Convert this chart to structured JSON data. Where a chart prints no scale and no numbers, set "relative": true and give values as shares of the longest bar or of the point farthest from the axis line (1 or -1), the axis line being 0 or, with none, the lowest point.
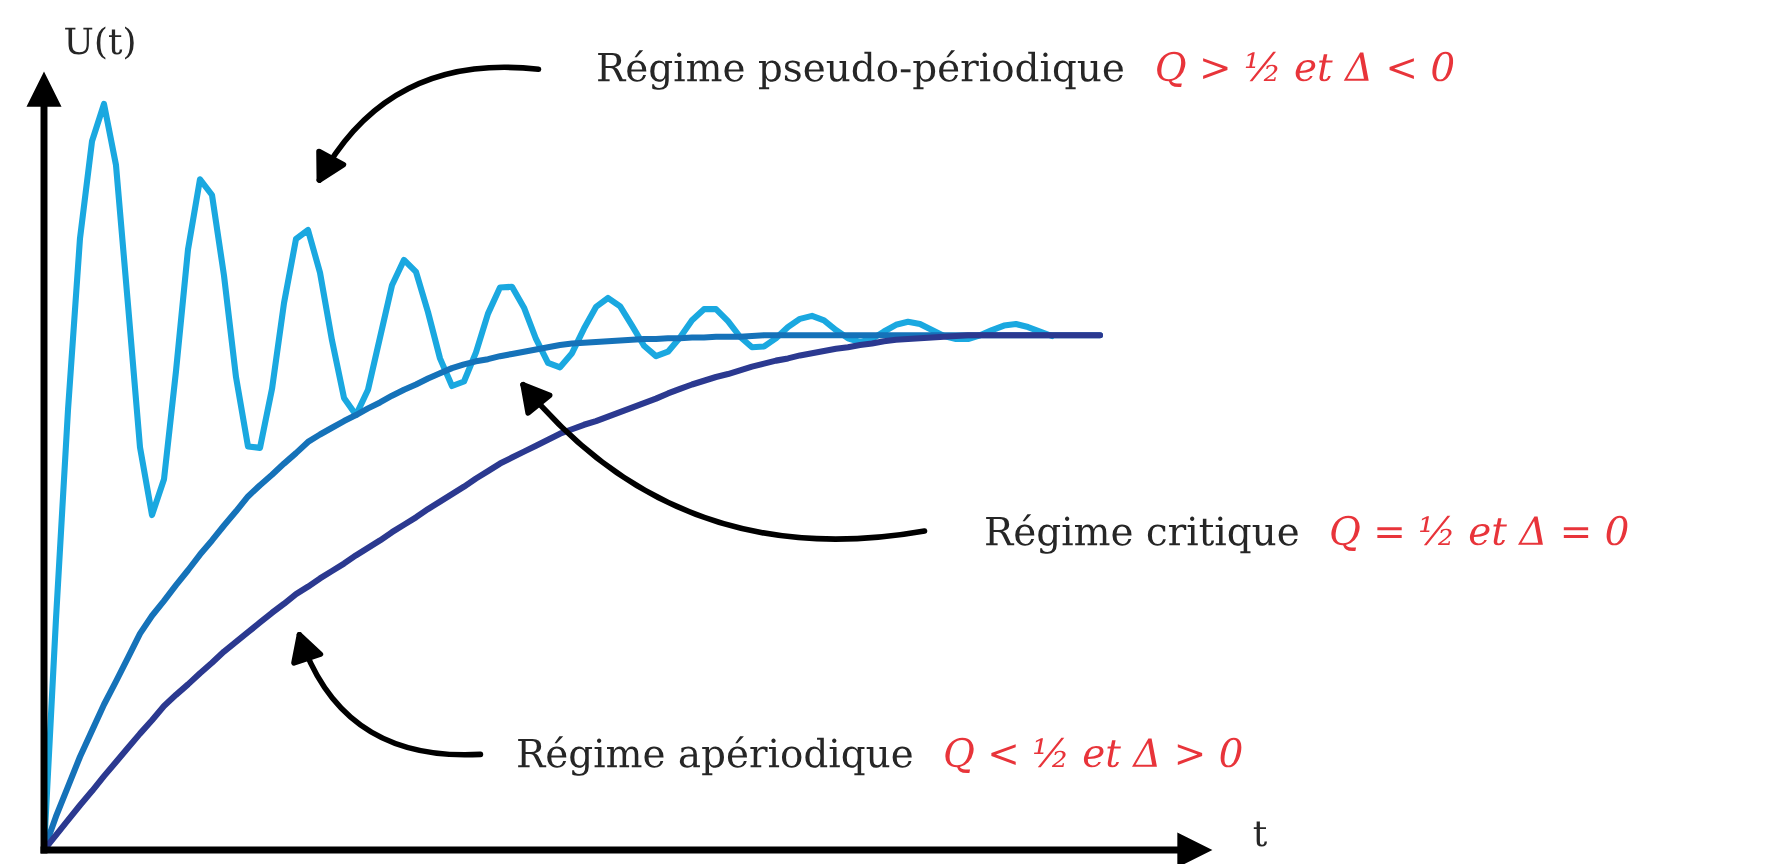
{
  "chart_data": {
    "type": "line",
    "relative": true,
    "xlabel": "t",
    "ylabel": "U(t)",
    "categories": [
      null,
      null,
      null,
      null,
      null,
      null,
      null,
      null,
      null,
      null,
      null,
      null,
      null,
      null,
      null,
      null,
      null,
      null,
      null,
      null,
      null,
      null,
      null,
      null,
      null,
      null,
      null,
      null,
      null,
      null,
      null,
      null,
      null,
      null,
      null,
      null,
      null,
      null,
      null,
      null,
      null,
      null,
      null,
      null,
      null,
      null,
      null,
      null,
      null,
      null,
      null,
      null,
      null,
      null,
      null,
      null,
      null,
      null,
      null,
      null,
      null,
      null,
      null,
      null,
      null,
      null,
      null,
      null,
      null,
      null,
      null,
      null,
      null,
      null,
      null,
      null,
      null,
      null,
      null,
      null,
      null,
      null,
      null,
      null,
      null,
      null,
      null,
      null,
      null
    ],
    "series": [
      {
        "color": "#1aa8e0",
        "values": [
          0,
          0.31,
          0.59,
          0.82,
          0.95,
          1.0,
          0.918,
          0.731,
          0.54,
          0.449,
          0.497,
          0.642,
          0.805,
          0.899,
          0.878,
          0.77,
          0.634,
          0.541,
          0.539,
          0.618,
          0.733,
          0.819,
          0.831,
          0.774,
          0.683,
          0.606,
          0.583,
          0.617,
          0.687,
          0.757,
          0.791,
          0.775,
          0.721,
          0.659,
          0.622,
          0.628,
          0.667,
          0.719,
          0.754,
          0.755,
          0.727,
          0.685,
          0.653,
          0.647,
          0.666,
          0.699,
          0.728,
          0.74,
          0.729,
          0.703,
          0.676,
          0.662,
          0.668,
          0.687,
          0.71,
          0.725,
          0.725,
          0.709,
          0.688,
          0.674,
          0.675,
          0.686,
          0.701,
          0.712,
          0.716,
          0.71,
          0.697,
          0.686,
          0.681,
          0.685,
          0.695,
          0.704,
          0.708,
          0.705,
          0.697,
          0.689,
          0.685,
          0.685,
          0.69,
          0.697,
          0.703,
          0.705,
          0.701,
          0.695,
          0.689,
          null,
          null,
          null,
          null
        ]
      },
      {
        "color": "#1572b9",
        "values": [
          0,
          0.045,
          0.085,
          0.125,
          0.16,
          0.195,
          0.226,
          0.258,
          0.29,
          0.314,
          0.334,
          0.355,
          0.375,
          0.396,
          0.415,
          0.435,
          0.454,
          0.474,
          0.489,
          0.503,
          0.518,
          0.532,
          0.547,
          0.557,
          0.566,
          0.575,
          0.583,
          0.592,
          0.6,
          0.609,
          0.617,
          0.624,
          0.632,
          0.639,
          0.646,
          0.651,
          0.655,
          0.658,
          0.662,
          0.665,
          0.668,
          0.671,
          0.674,
          0.677,
          0.679,
          0.68,
          0.681,
          0.682,
          0.683,
          0.684,
          0.685,
          0.685,
          0.686,
          0.686,
          0.687,
          0.687,
          0.688,
          0.688,
          0.688,
          0.689,
          0.69,
          0.69,
          0.69,
          0.69,
          0.69,
          0.69,
          0.69,
          0.69,
          0.69,
          0.69,
          0.69,
          0.69,
          0.69,
          0.69,
          0.69,
          0.69,
          0.69,
          0.69,
          0.69,
          0.69,
          0.69,
          0.69,
          0.69,
          0.69,
          0.69,
          0.69,
          0.69,
          0.69,
          0.69
        ]
      },
      {
        "color": "#2b3990",
        "values": [
          0,
          0.02,
          0.04,
          0.06,
          0.079,
          0.099,
          0.118,
          0.137,
          0.156,
          0.174,
          0.193,
          0.208,
          0.222,
          0.237,
          0.251,
          0.266,
          0.279,
          0.292,
          0.305,
          0.318,
          0.33,
          0.343,
          0.353,
          0.364,
          0.374,
          0.384,
          0.395,
          0.405,
          0.415,
          0.426,
          0.436,
          0.446,
          0.457,
          0.467,
          0.477,
          0.487,
          0.498,
          0.508,
          0.518,
          0.526,
          0.534,
          0.542,
          0.55,
          0.558,
          0.564,
          0.57,
          0.575,
          0.581,
          0.587,
          0.593,
          0.599,
          0.605,
          0.612,
          0.618,
          0.624,
          0.629,
          0.634,
          0.638,
          0.643,
          0.648,
          0.652,
          0.656,
          0.659,
          0.663,
          0.666,
          0.669,
          0.672,
          0.674,
          0.677,
          0.679,
          0.682,
          0.684,
          0.685,
          0.686,
          0.687,
          0.688,
          0.689,
          0.69,
          0.69,
          0.69,
          0.69,
          0.69,
          0.69,
          0.69,
          0.69,
          0.69,
          0.69,
          0.69,
          0.69
        ]
      }
    ],
    "annotations": [
      "Régime pseudo-périodique",
      "Q > ½ et Δ < 0",
      "Régime critique",
      "Q = ½ et Δ = 0",
      "Régime apériodique",
      "Q < ½ et Δ > 0"
    ]
  }
}
